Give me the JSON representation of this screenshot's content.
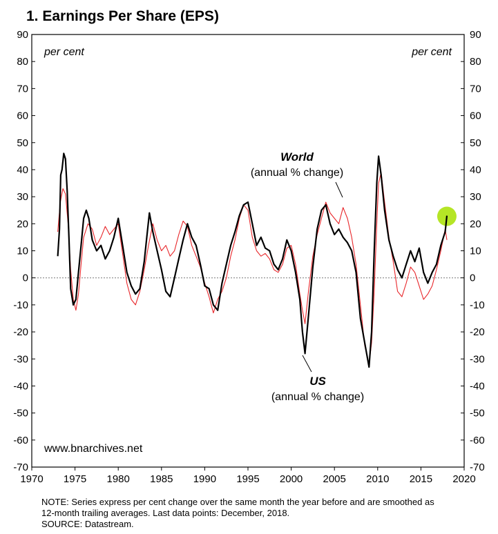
{
  "chart_data": {
    "type": "line",
    "title": "1. Earnings Per Share (EPS)",
    "y_unit_label_left": "per cent",
    "y_unit_label_right": "per cent",
    "xlim": [
      1970,
      2020
    ],
    "ylim": [
      -70,
      90
    ],
    "x_ticks": [
      1970,
      1975,
      1980,
      1985,
      1990,
      1995,
      2000,
      2005,
      2010,
      2015,
      2020
    ],
    "y_ticks": [
      90,
      80,
      70,
      60,
      50,
      40,
      30,
      20,
      10,
      0,
      -10,
      -20,
      -30,
      -40,
      -50,
      -60,
      -70
    ],
    "zero_line": "dotted",
    "watermark": "www.bnarchives.net",
    "series": [
      {
        "name": "US",
        "color": "#000000",
        "annotation": {
          "name": "US",
          "sub": "(annual % change)"
        },
        "points": [
          [
            1973.0,
            8
          ],
          [
            1973.2,
            18
          ],
          [
            1973.35,
            38
          ],
          [
            1973.5,
            40
          ],
          [
            1973.7,
            46
          ],
          [
            1973.9,
            44
          ],
          [
            1974.1,
            32
          ],
          [
            1974.3,
            15
          ],
          [
            1974.5,
            -4
          ],
          [
            1974.8,
            -10
          ],
          [
            1975.1,
            -8
          ],
          [
            1975.4,
            2
          ],
          [
            1975.7,
            12
          ],
          [
            1976.0,
            22
          ],
          [
            1976.3,
            25
          ],
          [
            1976.6,
            22
          ],
          [
            1977.0,
            14
          ],
          [
            1977.5,
            10
          ],
          [
            1978.0,
            12
          ],
          [
            1978.5,
            7
          ],
          [
            1979.0,
            10
          ],
          [
            1979.5,
            15
          ],
          [
            1980.0,
            22
          ],
          [
            1980.5,
            12
          ],
          [
            1981.0,
            2
          ],
          [
            1981.5,
            -3
          ],
          [
            1982.0,
            -6
          ],
          [
            1982.5,
            -4
          ],
          [
            1983.0,
            6
          ],
          [
            1983.3,
            15
          ],
          [
            1983.6,
            24
          ],
          [
            1984.0,
            17
          ],
          [
            1984.5,
            10
          ],
          [
            1985.0,
            3
          ],
          [
            1985.5,
            -5
          ],
          [
            1986.0,
            -7
          ],
          [
            1986.5,
            0
          ],
          [
            1987.0,
            7
          ],
          [
            1987.5,
            14
          ],
          [
            1988.0,
            20
          ],
          [
            1988.5,
            15
          ],
          [
            1989.0,
            12
          ],
          [
            1989.5,
            5
          ],
          [
            1990.0,
            -3
          ],
          [
            1990.5,
            -4
          ],
          [
            1991.0,
            -10
          ],
          [
            1991.5,
            -12
          ],
          [
            1992.0,
            -2
          ],
          [
            1992.5,
            5
          ],
          [
            1993.0,
            12
          ],
          [
            1993.5,
            17
          ],
          [
            1994.0,
            23
          ],
          [
            1994.5,
            27
          ],
          [
            1995.0,
            28
          ],
          [
            1995.5,
            20
          ],
          [
            1996.0,
            12
          ],
          [
            1996.5,
            15
          ],
          [
            1997.0,
            11
          ],
          [
            1997.5,
            10
          ],
          [
            1998.0,
            5
          ],
          [
            1998.5,
            3
          ],
          [
            1999.0,
            7
          ],
          [
            1999.5,
            14
          ],
          [
            2000.0,
            10
          ],
          [
            2000.5,
            2
          ],
          [
            2001.0,
            -8
          ],
          [
            2001.3,
            -20
          ],
          [
            2001.6,
            -28
          ],
          [
            2002.0,
            -14
          ],
          [
            2002.5,
            4
          ],
          [
            2003.0,
            18
          ],
          [
            2003.5,
            25
          ],
          [
            2004.0,
            27
          ],
          [
            2004.5,
            20
          ],
          [
            2005.0,
            16
          ],
          [
            2005.5,
            18
          ],
          [
            2006.0,
            15
          ],
          [
            2006.5,
            13
          ],
          [
            2007.0,
            10
          ],
          [
            2007.5,
            2
          ],
          [
            2008.0,
            -15
          ],
          [
            2008.5,
            -24
          ],
          [
            2009.0,
            -33
          ],
          [
            2009.3,
            -20
          ],
          [
            2009.6,
            10
          ],
          [
            2009.9,
            35
          ],
          [
            2010.1,
            45
          ],
          [
            2010.4,
            38
          ],
          [
            2010.8,
            25
          ],
          [
            2011.3,
            14
          ],
          [
            2011.8,
            8
          ],
          [
            2012.3,
            3
          ],
          [
            2012.8,
            0
          ],
          [
            2013.3,
            5
          ],
          [
            2013.8,
            10
          ],
          [
            2014.3,
            6
          ],
          [
            2014.8,
            11
          ],
          [
            2015.3,
            2
          ],
          [
            2015.8,
            -2
          ],
          [
            2016.3,
            2
          ],
          [
            2016.8,
            5
          ],
          [
            2017.3,
            12
          ],
          [
            2017.8,
            17
          ],
          [
            2018.0,
            23
          ]
        ]
      },
      {
        "name": "World",
        "color": "#e8262a",
        "annotation": {
          "name": "World",
          "sub": "(annual % change)"
        },
        "points": [
          [
            1973.0,
            17
          ],
          [
            1973.3,
            28
          ],
          [
            1973.6,
            33
          ],
          [
            1973.9,
            31
          ],
          [
            1974.2,
            20
          ],
          [
            1974.5,
            3
          ],
          [
            1974.8,
            -8
          ],
          [
            1975.1,
            -12
          ],
          [
            1975.4,
            -6
          ],
          [
            1975.7,
            5
          ],
          [
            1976.0,
            15
          ],
          [
            1976.5,
            20
          ],
          [
            1977.0,
            18
          ],
          [
            1977.5,
            12
          ],
          [
            1978.0,
            15
          ],
          [
            1978.5,
            19
          ],
          [
            1979.0,
            16
          ],
          [
            1979.5,
            18
          ],
          [
            1980.0,
            20
          ],
          [
            1980.5,
            9
          ],
          [
            1981.0,
            -2
          ],
          [
            1981.5,
            -8
          ],
          [
            1982.0,
            -10
          ],
          [
            1982.5,
            -5
          ],
          [
            1983.0,
            3
          ],
          [
            1983.5,
            12
          ],
          [
            1984.0,
            20
          ],
          [
            1984.5,
            14
          ],
          [
            1985.0,
            10
          ],
          [
            1985.5,
            12
          ],
          [
            1986.0,
            8
          ],
          [
            1986.5,
            10
          ],
          [
            1987.0,
            16
          ],
          [
            1987.5,
            21
          ],
          [
            1988.0,
            19
          ],
          [
            1988.5,
            12
          ],
          [
            1989.0,
            8
          ],
          [
            1989.5,
            4
          ],
          [
            1990.0,
            -2
          ],
          [
            1990.5,
            -7
          ],
          [
            1991.0,
            -13
          ],
          [
            1991.5,
            -8
          ],
          [
            1992.0,
            -5
          ],
          [
            1992.5,
            0
          ],
          [
            1993.0,
            8
          ],
          [
            1993.5,
            14
          ],
          [
            1994.0,
            22
          ],
          [
            1994.5,
            27
          ],
          [
            1995.0,
            25
          ],
          [
            1995.5,
            15
          ],
          [
            1996.0,
            10
          ],
          [
            1996.5,
            8
          ],
          [
            1997.0,
            9
          ],
          [
            1997.5,
            7
          ],
          [
            1998.0,
            3
          ],
          [
            1998.5,
            2
          ],
          [
            1999.0,
            5
          ],
          [
            1999.5,
            11
          ],
          [
            2000.0,
            12
          ],
          [
            2000.5,
            5
          ],
          [
            2001.0,
            -6
          ],
          [
            2001.3,
            -12
          ],
          [
            2001.6,
            -17
          ],
          [
            2002.0,
            -5
          ],
          [
            2002.5,
            8
          ],
          [
            2003.0,
            16
          ],
          [
            2003.5,
            22
          ],
          [
            2004.0,
            28
          ],
          [
            2004.5,
            24
          ],
          [
            2005.0,
            22
          ],
          [
            2005.5,
            20
          ],
          [
            2006.0,
            26
          ],
          [
            2006.5,
            22
          ],
          [
            2007.0,
            15
          ],
          [
            2007.5,
            5
          ],
          [
            2008.0,
            -10
          ],
          [
            2008.5,
            -25
          ],
          [
            2009.0,
            -32
          ],
          [
            2009.3,
            -24
          ],
          [
            2009.6,
            -5
          ],
          [
            2009.9,
            20
          ],
          [
            2010.1,
            35
          ],
          [
            2010.4,
            39
          ],
          [
            2010.8,
            28
          ],
          [
            2011.3,
            15
          ],
          [
            2011.8,
            6
          ],
          [
            2012.3,
            -5
          ],
          [
            2012.8,
            -7
          ],
          [
            2013.3,
            -2
          ],
          [
            2013.8,
            4
          ],
          [
            2014.3,
            2
          ],
          [
            2014.8,
            -3
          ],
          [
            2015.3,
            -8
          ],
          [
            2015.8,
            -6
          ],
          [
            2016.3,
            -3
          ],
          [
            2016.8,
            3
          ],
          [
            2017.3,
            10
          ],
          [
            2017.8,
            18
          ],
          [
            2018.0,
            14
          ]
        ]
      }
    ],
    "highlight": {
      "x": 2018.0,
      "y": 23,
      "color": "#a8e000"
    },
    "note_lines": [
      "NOTE: Series express per cent change over the same month the year before and are smoothed as",
      "12-month trailing averages. Last data points: December, 2018.",
      "SOURCE: Datastream."
    ]
  }
}
